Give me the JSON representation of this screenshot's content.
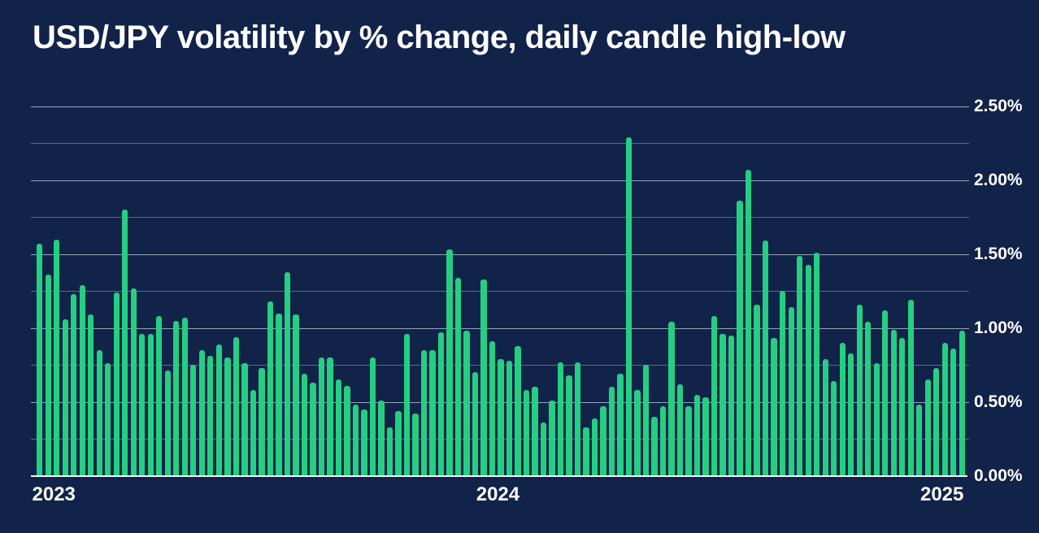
{
  "page": {
    "colors": {
      "background": "#12234a",
      "bar": "#24cf81",
      "grid_major": "rgba(202,213,235,0.72)",
      "grid_minor": "rgba(202,213,235,0.40)",
      "axis_line": "#f2f5fb",
      "text": "#ffffff"
    }
  },
  "chart_data": {
    "type": "bar",
    "title": "USD/JPY volatility by % change, daily candle high-low",
    "xlabel": "",
    "ylabel": "",
    "unit": "%",
    "ylim": [
      0,
      2.5
    ],
    "grid": "on",
    "grid_interval": 0.25,
    "legend_position": "none",
    "y_axis_side": "right",
    "y_ticks": [
      {
        "label": "0.00%",
        "value": 0.0
      },
      {
        "label": "0.50%",
        "value": 0.5
      },
      {
        "label": "1.00%",
        "value": 1.0
      },
      {
        "label": "1.50%",
        "value": 1.5
      },
      {
        "label": "2.00%",
        "value": 2.0
      },
      {
        "label": "2.50%",
        "value": 2.5
      }
    ],
    "x_ticks": [
      {
        "label": "2023",
        "bar_index": 0
      },
      {
        "label": "2024",
        "bar_index": 52
      },
      {
        "label": "2025",
        "bar_index": 104
      }
    ],
    "values": [
      1.57,
      1.36,
      1.6,
      1.06,
      1.23,
      1.29,
      1.09,
      0.85,
      0.76,
      1.24,
      1.8,
      1.27,
      0.96,
      0.96,
      1.08,
      0.71,
      1.05,
      1.07,
      0.75,
      0.85,
      0.81,
      0.89,
      0.8,
      0.94,
      0.76,
      0.58,
      0.73,
      1.18,
      1.1,
      1.38,
      1.09,
      0.69,
      0.63,
      0.8,
      0.8,
      0.65,
      0.61,
      0.48,
      0.45,
      0.8,
      0.51,
      0.33,
      0.44,
      0.96,
      0.42,
      0.85,
      0.85,
      0.97,
      1.53,
      1.34,
      0.98,
      0.7,
      1.33,
      0.91,
      0.79,
      0.78,
      0.88,
      0.58,
      0.6,
      0.36,
      0.51,
      0.77,
      0.68,
      0.77,
      0.33,
      0.39,
      0.47,
      0.6,
      0.69,
      2.29,
      0.58,
      0.75,
      0.4,
      0.47,
      1.04,
      0.62,
      0.47,
      0.55,
      0.53,
      1.08,
      0.96,
      0.95,
      1.86,
      2.07,
      1.16,
      1.59,
      0.93,
      1.25,
      1.14,
      1.49,
      1.43,
      1.51,
      0.79,
      0.64,
      0.9,
      0.83,
      1.16,
      1.04,
      0.76,
      1.12,
      0.99,
      0.93,
      1.19,
      0.48,
      0.65,
      0.73,
      0.9,
      0.86,
      0.98
    ]
  }
}
